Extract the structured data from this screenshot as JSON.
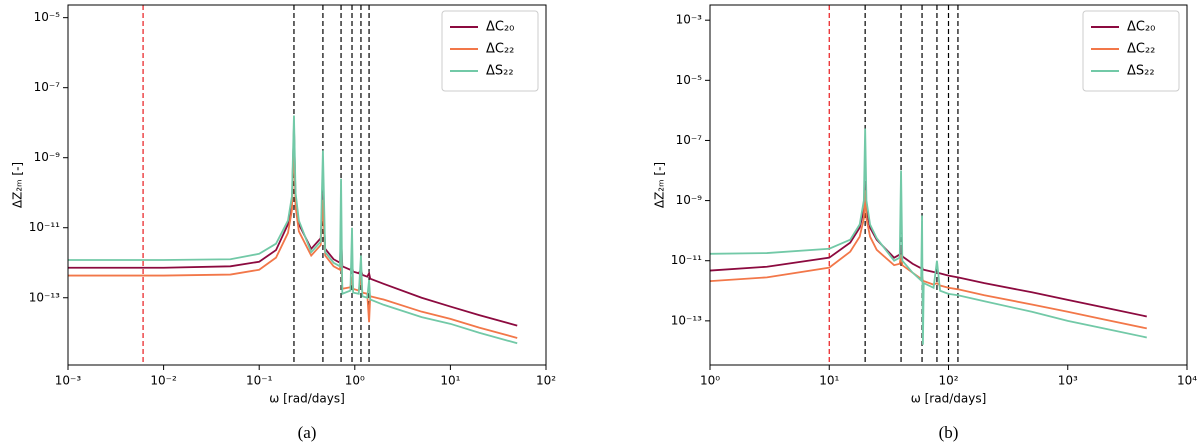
{
  "chart_data": [
    {
      "type": "line",
      "caption": "(a)",
      "xlabel": "ω [rad/days]",
      "ylabel": "ΔZ₂ₘ [-]",
      "xscale": "log",
      "yscale": "log",
      "legend": "upper right",
      "xlim": [
        0.001,
        100
      ],
      "ylim": [
        1.2e-15,
        2.3e-05
      ],
      "xticks": [
        {
          "value": 0.001,
          "label": "10⁻³"
        },
        {
          "value": 0.01,
          "label": "10⁻²"
        },
        {
          "value": 0.1,
          "label": "10⁻¹"
        },
        {
          "value": 1,
          "label": "10⁰"
        },
        {
          "value": 10,
          "label": "10¹"
        },
        {
          "value": 100,
          "label": "10²"
        }
      ],
      "yticks": [
        {
          "value": 1e-13,
          "label": "10⁻¹³"
        },
        {
          "value": 1e-11,
          "label": "10⁻¹¹"
        },
        {
          "value": 1e-09,
          "label": "10⁻⁹"
        },
        {
          "value": 1e-07,
          "label": "10⁻⁷"
        },
        {
          "value": 1e-05,
          "label": "10⁻⁵"
        }
      ],
      "vlines": [
        {
          "x": 0.0061,
          "color": "#e8191c"
        },
        {
          "x": 0.231,
          "color": "#000000"
        },
        {
          "x": 0.464,
          "color": "#000000"
        },
        {
          "x": 0.718,
          "color": "#000000"
        },
        {
          "x": 0.935,
          "color": "#000000"
        },
        {
          "x": 1.16,
          "color": "#000000"
        },
        {
          "x": 1.41,
          "color": "#000000"
        }
      ],
      "x": [
        0.001,
        0.01,
        0.05,
        0.1,
        0.15,
        0.2,
        0.22,
        0.231,
        0.24,
        0.26,
        0.35,
        0.44,
        0.464,
        0.49,
        0.6,
        0.7,
        0.718,
        0.74,
        0.9,
        0.935,
        0.96,
        1.1,
        1.16,
        1.2,
        1.35,
        1.41,
        1.45,
        2,
        5,
        10,
        20,
        50
      ],
      "series": [
        {
          "name": "ΔC₂₀",
          "color": "#8c0a3f",
          "values": [
            7.2e-13,
            7.2e-13,
            7.9e-13,
            1.07e-12,
            2.3e-12,
            1.26e-11,
            5e-11,
            7.9e-09,
            6.3e-11,
            1.26e-11,
            2.5e-12,
            5e-12,
            1e-10,
            2.5e-12,
            1.26e-12,
            1e-12,
            6.3e-12,
            7.9e-13,
            6.3e-13,
            7.9e-13,
            5.6e-13,
            5e-13,
            6.3e-13,
            4.5e-13,
            4e-13,
            5e-13,
            3.5e-13,
            2.5e-13,
            1e-13,
            5.6e-14,
            3.2e-14,
            1.6e-14
          ]
        },
        {
          "name": "ΔC₂₂",
          "color": "#f27749",
          "values": [
            4.3e-13,
            4.3e-13,
            4.6e-13,
            6.3e-13,
            1.4e-12,
            7.1e-12,
            3.2e-11,
            4e-09,
            4e-11,
            7.9e-12,
            1.6e-12,
            3.2e-12,
            6.3e-11,
            1.6e-12,
            7.9e-13,
            6.3e-13,
            3.2e-12,
            1.8e-13,
            2e-13,
            4e-13,
            1.8e-13,
            1.6e-13,
            4e-13,
            1.4e-13,
            1.3e-13,
            2e-14,
            1.1e-13,
            8.9e-14,
            4e-14,
            2.5e-14,
            1.4e-14,
            7.1e-15
          ]
        },
        {
          "name": "ΔS₂₂",
          "color": "#72c9a7",
          "values": [
            1.2e-12,
            1.2e-12,
            1.26e-12,
            1.8e-12,
            3.5e-12,
            1.6e-11,
            7.9e-11,
            1.6e-08,
            1e-10,
            1.6e-11,
            2e-12,
            4e-12,
            1.6e-09,
            2e-12,
            1e-12,
            7.9e-13,
            2.5e-10,
            1.3e-13,
            1.6e-13,
            1e-11,
            1.4e-13,
            1.3e-13,
            1.6e-12,
            1.1e-13,
            1e-13,
            3.2e-13,
            8.9e-14,
            6.3e-14,
            2.8e-14,
            1.8e-14,
            1e-14,
            5e-15
          ]
        }
      ]
    },
    {
      "type": "line",
      "caption": "(b)",
      "xlabel": "ω [rad/days]",
      "ylabel": "ΔZ₂ₘ [-]",
      "xscale": "log",
      "yscale": "log",
      "legend": "upper right",
      "xlim": [
        1,
        10000
      ],
      "ylim": [
        3.4e-15,
        0.0032
      ],
      "xticks": [
        {
          "value": 1,
          "label": "10⁰"
        },
        {
          "value": 10,
          "label": "10¹"
        },
        {
          "value": 100,
          "label": "10²"
        },
        {
          "value": 1000,
          "label": "10³"
        },
        {
          "value": 10000,
          "label": "10⁴"
        }
      ],
      "yticks": [
        {
          "value": 1e-13,
          "label": "10⁻¹³"
        },
        {
          "value": 1e-11,
          "label": "10⁻¹¹"
        },
        {
          "value": 1e-09,
          "label": "10⁻⁹"
        },
        {
          "value": 1e-07,
          "label": "10⁻⁷"
        },
        {
          "value": 1e-05,
          "label": "10⁻⁵"
        },
        {
          "value": 0.001,
          "label": "10⁻³"
        }
      ],
      "vlines": [
        {
          "x": 10,
          "color": "#e8191c"
        },
        {
          "x": 20,
          "color": "#000000"
        },
        {
          "x": 40,
          "color": "#000000"
        },
        {
          "x": 60,
          "color": "#000000"
        },
        {
          "x": 80,
          "color": "#000000"
        },
        {
          "x": 100,
          "color": "#000000"
        },
        {
          "x": 120,
          "color": "#000000"
        }
      ],
      "x": [
        1,
        3,
        10,
        15,
        18,
        19.5,
        20,
        20.5,
        22,
        25,
        35,
        39,
        40,
        41,
        50,
        59,
        60,
        61,
        62,
        75,
        80,
        85,
        100,
        120,
        200,
        500,
        1000,
        2000,
        4600
      ],
      "series": [
        {
          "name": "ΔC₂₀",
          "color": "#8c0a3f",
          "values": [
            4.7e-12,
            6.3e-12,
            1.26e-11,
            4e-11,
            1.26e-10,
            5e-10,
            4e-09,
            5e-10,
            1.26e-10,
            5e-11,
            1.26e-11,
            1.6e-11,
            3.2e-11,
            1.4e-11,
            7.9e-12,
            5.6e-12,
            6.3e-12,
            5.2e-12,
            5e-12,
            4.2e-12,
            4e-12,
            3.8e-12,
            3.2e-12,
            2.8e-12,
            1.8e-12,
            8.9e-13,
            5e-13,
            2.8e-13,
            1.4e-13
          ]
        },
        {
          "name": "ΔC₂₂",
          "color": "#f27749",
          "values": [
            2.1e-12,
            2.8e-12,
            5.9e-12,
            2e-11,
            6.3e-11,
            2.5e-10,
            2.2e-09,
            2.5e-10,
            6.3e-11,
            2.3e-11,
            7.1e-12,
            7.9e-12,
            1.6e-11,
            7.1e-12,
            4e-12,
            2.5e-12,
            3.2e-12,
            2.2e-12,
            2.1e-12,
            1.6e-12,
            1.8e-12,
            1.5e-12,
            1.26e-12,
            1.12e-12,
            7.1e-13,
            3.5e-13,
            2e-13,
            1.12e-13,
            5.6e-14
          ]
        },
        {
          "name": "ΔS₂₂",
          "color": "#72c9a7",
          "values": [
            1.7e-11,
            1.8e-11,
            2.5e-11,
            5e-11,
            1.6e-10,
            1e-09,
            2.5e-07,
            1e-09,
            1.6e-10,
            5.6e-11,
            1e-11,
            1.26e-11,
            1e-08,
            1e-11,
            4e-12,
            2.2e-12,
            3.2e-10,
            1.6e-14,
            1.8e-12,
            1.26e-12,
            1e-11,
            1e-12,
            7.9e-13,
            7.1e-13,
            4.5e-13,
            2e-13,
            1e-13,
            5.6e-14,
            2.8e-14
          ]
        }
      ]
    }
  ]
}
